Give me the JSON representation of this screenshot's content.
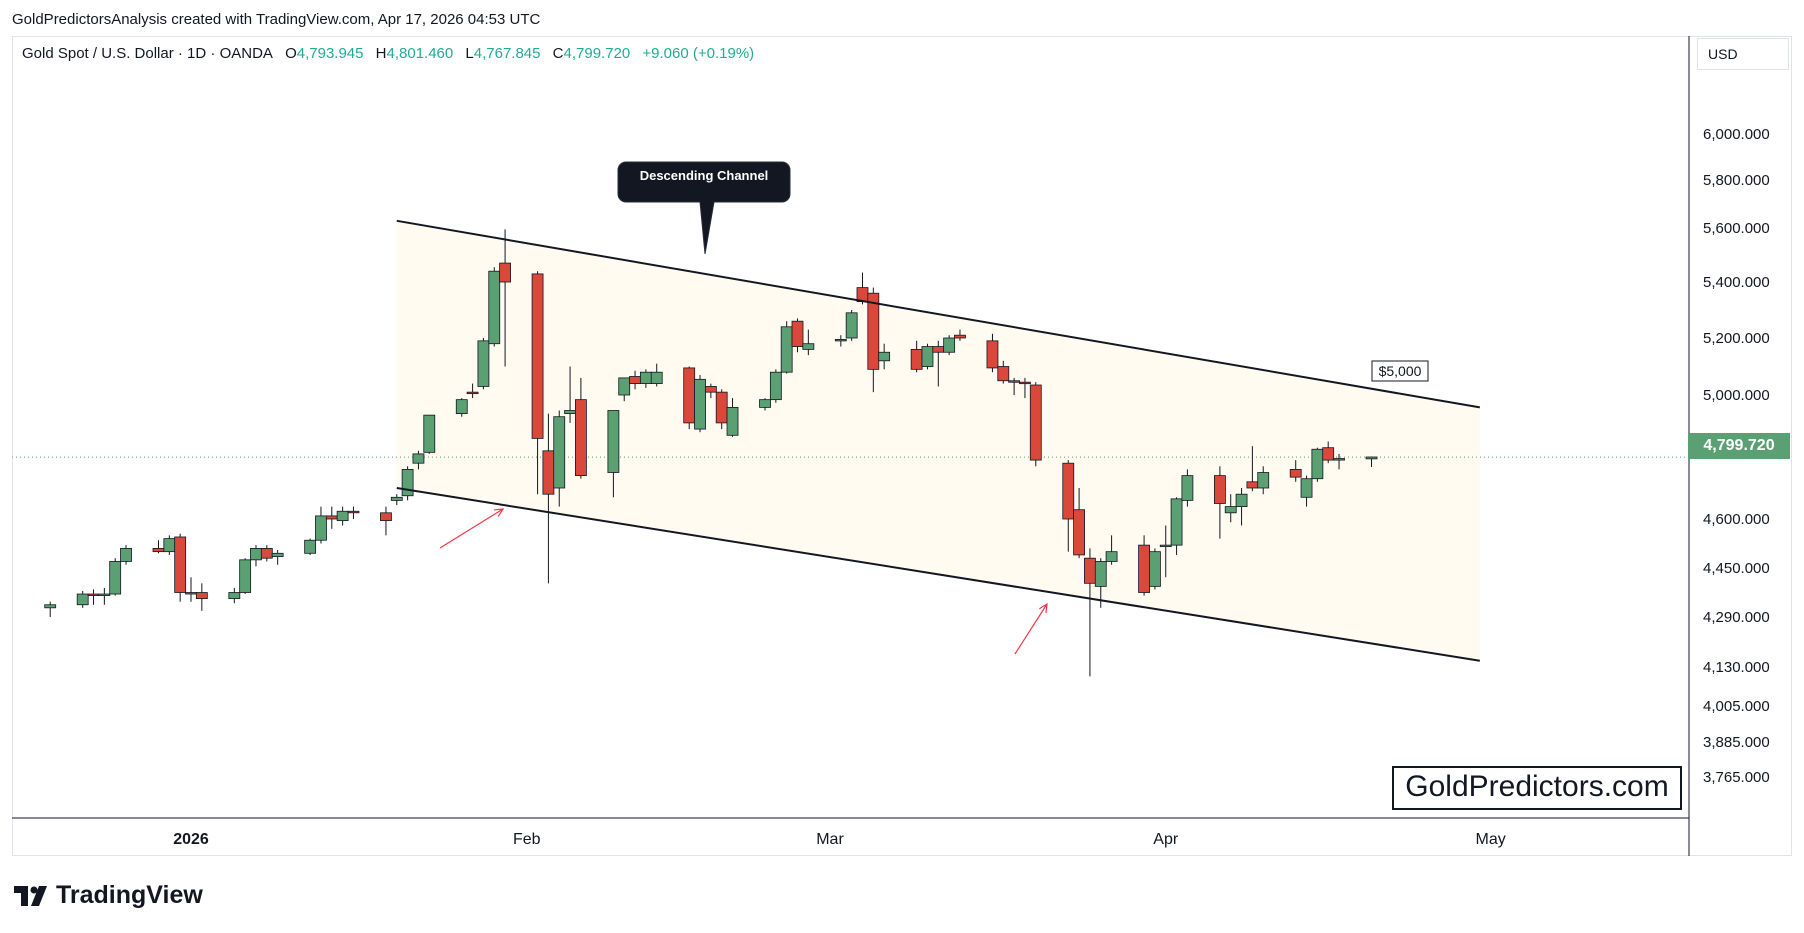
{
  "caption": "GoldPredictorsAnalysis created with TradingView.com, Apr 17, 2026 04:53 UTC",
  "legend": {
    "symbol": "Gold Spot / U.S. Dollar · 1D · OANDA",
    "open_label": "O",
    "open": "4,793.945",
    "high_label": "H",
    "high": "4,801.460",
    "low_label": "L",
    "low": "4,767.845",
    "close_label": "C",
    "close": "4,799.720",
    "change": "+9.060 (+0.19%)"
  },
  "currency": "USD",
  "last_price_label": "4,799.720",
  "brand": "GoldPredictors.com",
  "footer_logo": "TradingView",
  "colors": {
    "up": "#5aa073",
    "down": "#d9483b",
    "channel_fill": "#fffbf0",
    "arrow": "#f23645"
  },
  "chart_data": {
    "type": "candlestick",
    "title": "",
    "xlabel": "",
    "ylabel": "",
    "y_tick_labels": [
      "6,000.000",
      "5,800.000",
      "5,600.000",
      "5,400.000",
      "5,200.000",
      "5,000.000",
      "4,600.000",
      "4,450.000",
      "4,290.000",
      "4,130.000",
      "4,005.000",
      "3,885.000",
      "3,765.000"
    ],
    "x_tick_labels": [
      "2026",
      "Feb",
      "Mar",
      "Apr",
      "May"
    ],
    "grid": false,
    "annotations": {
      "callout": "Descending Channel",
      "level_label": "$5,000"
    },
    "channel": {
      "upper": [
        [
          "2026-01-20",
          5630
        ],
        [
          "2026-04-30",
          4960
        ]
      ],
      "lower": [
        [
          "2026-01-20",
          4700
        ],
        [
          "2026-04-30",
          4150
        ]
      ]
    },
    "candles": [
      {
        "d": "2025-12-19",
        "o": 4320,
        "h": 4340,
        "l": 4290,
        "c": 4330
      },
      {
        "d": "2025-12-22",
        "o": 4330,
        "h": 4375,
        "l": 4320,
        "c": 4365
      },
      {
        "d": "2025-12-23",
        "o": 4365,
        "h": 4380,
        "l": 4330,
        "c": 4360
      },
      {
        "d": "2025-12-24",
        "o": 4360,
        "h": 4385,
        "l": 4330,
        "c": 4365
      },
      {
        "d": "2025-12-25",
        "o": 4365,
        "h": 4480,
        "l": 4360,
        "c": 4470
      },
      {
        "d": "2025-12-26",
        "o": 4470,
        "h": 4520,
        "l": 4460,
        "c": 4510
      },
      {
        "d": "2025-12-29",
        "o": 4510,
        "h": 4535,
        "l": 4495,
        "c": 4500
      },
      {
        "d": "2025-12-30",
        "o": 4500,
        "h": 4550,
        "l": 4490,
        "c": 4540
      },
      {
        "d": "2025-12-31",
        "o": 4545,
        "h": 4555,
        "l": 4340,
        "c": 4370
      },
      {
        "d": "2026-01-01",
        "o": 4370,
        "h": 4420,
        "l": 4340,
        "c": 4365
      },
      {
        "d": "2026-01-02",
        "o": 4370,
        "h": 4400,
        "l": 4310,
        "c": 4350
      },
      {
        "d": "2026-01-05",
        "o": 4350,
        "h": 4385,
        "l": 4335,
        "c": 4370
      },
      {
        "d": "2026-01-06",
        "o": 4370,
        "h": 4480,
        "l": 4365,
        "c": 4475
      },
      {
        "d": "2026-01-07",
        "o": 4475,
        "h": 4520,
        "l": 4455,
        "c": 4510
      },
      {
        "d": "2026-01-08",
        "o": 4510,
        "h": 4520,
        "l": 4470,
        "c": 4480
      },
      {
        "d": "2026-01-09",
        "o": 4485,
        "h": 4505,
        "l": 4460,
        "c": 4495
      },
      {
        "d": "2026-01-12",
        "o": 4495,
        "h": 4540,
        "l": 4490,
        "c": 4535
      },
      {
        "d": "2026-01-13",
        "o": 4535,
        "h": 4640,
        "l": 4525,
        "c": 4610
      },
      {
        "d": "2026-01-14",
        "o": 4610,
        "h": 4640,
        "l": 4570,
        "c": 4600
      },
      {
        "d": "2026-01-15",
        "o": 4595,
        "h": 4640,
        "l": 4580,
        "c": 4625
      },
      {
        "d": "2026-01-16",
        "o": 4625,
        "h": 4640,
        "l": 4600,
        "c": 4620
      },
      {
        "d": "2026-01-19",
        "o": 4620,
        "h": 4640,
        "l": 4550,
        "c": 4595
      },
      {
        "d": "2026-01-20",
        "o": 4660,
        "h": 4680,
        "l": 4645,
        "c": 4670
      },
      {
        "d": "2026-01-21",
        "o": 4675,
        "h": 4770,
        "l": 4660,
        "c": 4760
      },
      {
        "d": "2026-01-22",
        "o": 4780,
        "h": 4820,
        "l": 4760,
        "c": 4810
      },
      {
        "d": "2026-01-23",
        "o": 4815,
        "h": 4935,
        "l": 4810,
        "c": 4935
      },
      {
        "d": "2026-01-26",
        "o": 4940,
        "h": 4990,
        "l": 4930,
        "c": 4985
      },
      {
        "d": "2026-01-27",
        "o": 5010,
        "h": 5040,
        "l": 4990,
        "c": 5005
      },
      {
        "d": "2026-01-28",
        "o": 5030,
        "h": 5200,
        "l": 5020,
        "c": 5190
      },
      {
        "d": "2026-01-29",
        "o": 5180,
        "h": 5455,
        "l": 5170,
        "c": 5440
      },
      {
        "d": "2026-01-30",
        "o": 5470,
        "h": 5595,
        "l": 5100,
        "c": 5400
      },
      {
        "d": "2026-02-02",
        "o": 5430,
        "h": 5440,
        "l": 4680,
        "c": 4860
      },
      {
        "d": "2026-02-03",
        "o": 4820,
        "h": 4940,
        "l": 4400,
        "c": 4680
      },
      {
        "d": "2026-02-04",
        "o": 4700,
        "h": 4950,
        "l": 4640,
        "c": 4930
      },
      {
        "d": "2026-02-05",
        "o": 4940,
        "h": 5100,
        "l": 4910,
        "c": 4950
      },
      {
        "d": "2026-02-06",
        "o": 4985,
        "h": 5060,
        "l": 4730,
        "c": 4740
      },
      {
        "d": "2026-02-09",
        "o": 4750,
        "h": 4950,
        "l": 4670,
        "c": 4950
      },
      {
        "d": "2026-02-10",
        "o": 5000,
        "h": 5060,
        "l": 4980,
        "c": 5060
      },
      {
        "d": "2026-02-11",
        "o": 5065,
        "h": 5085,
        "l": 5020,
        "c": 5040
      },
      {
        "d": "2026-02-12",
        "o": 5040,
        "h": 5090,
        "l": 5025,
        "c": 5080
      },
      {
        "d": "2026-02-13",
        "o": 5040,
        "h": 5110,
        "l": 5030,
        "c": 5080
      },
      {
        "d": "2026-02-16",
        "o": 5095,
        "h": 5100,
        "l": 4890,
        "c": 4910
      },
      {
        "d": "2026-02-17",
        "o": 4890,
        "h": 5070,
        "l": 4880,
        "c": 5055
      },
      {
        "d": "2026-02-18",
        "o": 5030,
        "h": 5040,
        "l": 4990,
        "c": 5010
      },
      {
        "d": "2026-02-19",
        "o": 5010,
        "h": 5020,
        "l": 4890,
        "c": 4910
      },
      {
        "d": "2026-02-20",
        "o": 4870,
        "h": 4990,
        "l": 4865,
        "c": 4960
      },
      {
        "d": "2026-02-23",
        "o": 4960,
        "h": 4990,
        "l": 4950,
        "c": 4985
      },
      {
        "d": "2026-02-24",
        "o": 4985,
        "h": 5090,
        "l": 4975,
        "c": 5080
      },
      {
        "d": "2026-02-25",
        "o": 5080,
        "h": 5260,
        "l": 5075,
        "c": 5240
      },
      {
        "d": "2026-02-26",
        "o": 5260,
        "h": 5270,
        "l": 5150,
        "c": 5170
      },
      {
        "d": "2026-02-27",
        "o": 5160,
        "h": 5230,
        "l": 5140,
        "c": 5180
      },
      {
        "d": "2026-03-02",
        "o": 5190,
        "h": 5210,
        "l": 5170,
        "c": 5195
      },
      {
        "d": "2026-03-03",
        "o": 5200,
        "h": 5300,
        "l": 5190,
        "c": 5290
      },
      {
        "d": "2026-03-04",
        "o": 5380,
        "h": 5435,
        "l": 5320,
        "c": 5330
      },
      {
        "d": "2026-03-05",
        "o": 5360,
        "h": 5380,
        "l": 5010,
        "c": 5090
      },
      {
        "d": "2026-03-06",
        "o": 5120,
        "h": 5180,
        "l": 5090,
        "c": 5150
      },
      {
        "d": "2026-03-09",
        "o": 5160,
        "h": 5190,
        "l": 5080,
        "c": 5090
      },
      {
        "d": "2026-03-10",
        "o": 5100,
        "h": 5180,
        "l": 5090,
        "c": 5170
      },
      {
        "d": "2026-03-11",
        "o": 5170,
        "h": 5190,
        "l": 5030,
        "c": 5150
      },
      {
        "d": "2026-03-12",
        "o": 5150,
        "h": 5210,
        "l": 5140,
        "c": 5200
      },
      {
        "d": "2026-03-13",
        "o": 5210,
        "h": 5230,
        "l": 5190,
        "c": 5200
      },
      {
        "d": "2026-03-16",
        "o": 5190,
        "h": 5215,
        "l": 5080,
        "c": 5095
      },
      {
        "d": "2026-03-17",
        "o": 5100,
        "h": 5120,
        "l": 5040,
        "c": 5050
      },
      {
        "d": "2026-03-18",
        "o": 5050,
        "h": 5060,
        "l": 5000,
        "c": 5045
      },
      {
        "d": "2026-03-19",
        "o": 5045,
        "h": 5060,
        "l": 4990,
        "c": 5040
      },
      {
        "d": "2026-03-20",
        "o": 5035,
        "h": 5045,
        "l": 4770,
        "c": 4790
      },
      {
        "d": "2026-03-23",
        "o": 4780,
        "h": 4790,
        "l": 4500,
        "c": 4600
      },
      {
        "d": "2026-03-24",
        "o": 4630,
        "h": 4700,
        "l": 4480,
        "c": 4490
      },
      {
        "d": "2026-03-25",
        "o": 4480,
        "h": 4510,
        "l": 4100,
        "c": 4400
      },
      {
        "d": "2026-03-26",
        "o": 4390,
        "h": 4480,
        "l": 4320,
        "c": 4470
      },
      {
        "d": "2026-03-27",
        "o": 4470,
        "h": 4550,
        "l": 4460,
        "c": 4500
      },
      {
        "d": "2026-03-30",
        "o": 4520,
        "h": 4550,
        "l": 4360,
        "c": 4370
      },
      {
        "d": "2026-03-31",
        "o": 4390,
        "h": 4510,
        "l": 4380,
        "c": 4500
      },
      {
        "d": "2026-04-01",
        "o": 4520,
        "h": 4580,
        "l": 4420,
        "c": 4520
      },
      {
        "d": "2026-04-02",
        "o": 4520,
        "h": 4670,
        "l": 4490,
        "c": 4665
      },
      {
        "d": "2026-04-03",
        "o": 4660,
        "h": 4760,
        "l": 4640,
        "c": 4740
      },
      {
        "d": "2026-04-06",
        "o": 4740,
        "h": 4770,
        "l": 4540,
        "c": 4650
      },
      {
        "d": "2026-04-07",
        "o": 4620,
        "h": 4680,
        "l": 4590,
        "c": 4640
      },
      {
        "d": "2026-04-08",
        "o": 4640,
        "h": 4700,
        "l": 4580,
        "c": 4680
      },
      {
        "d": "2026-04-09",
        "o": 4720,
        "h": 4835,
        "l": 4690,
        "c": 4700
      },
      {
        "d": "2026-04-10",
        "o": 4700,
        "h": 4770,
        "l": 4680,
        "c": 4750
      },
      {
        "d": "2026-04-13",
        "o": 4760,
        "h": 4790,
        "l": 4720,
        "c": 4735
      },
      {
        "d": "2026-04-14",
        "o": 4670,
        "h": 4740,
        "l": 4640,
        "c": 4730
      },
      {
        "d": "2026-04-15",
        "o": 4730,
        "h": 4830,
        "l": 4720,
        "c": 4825
      },
      {
        "d": "2026-04-16",
        "o": 4830,
        "h": 4850,
        "l": 4780,
        "c": 4790
      },
      {
        "d": "2026-04-17",
        "o": 4795,
        "h": 4810,
        "l": 4760,
        "c": 4790
      },
      {
        "d": "2026-04-20",
        "o": 4794,
        "h": 4801,
        "l": 4768,
        "c": 4800
      }
    ]
  }
}
